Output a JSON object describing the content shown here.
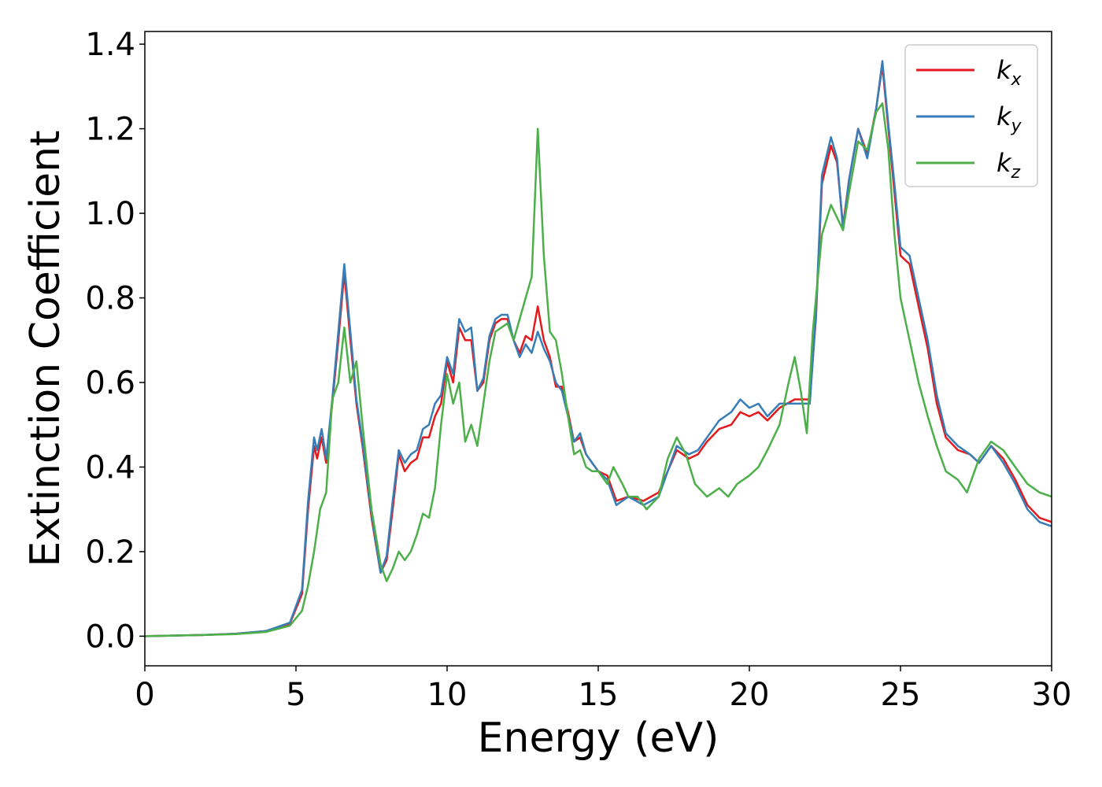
{
  "chart_data": {
    "type": "line",
    "xlabel": "Energy (eV)",
    "ylabel": "Extinction Coefficient",
    "xlim": [
      0,
      30
    ],
    "ylim": [
      -0.07,
      1.43
    ],
    "xticks": [
      0,
      5,
      10,
      15,
      20,
      25,
      30
    ],
    "xtick_labels": [
      "0",
      "5",
      "10",
      "15",
      "20",
      "25",
      "30"
    ],
    "yticks": [
      0.0,
      0.2,
      0.4,
      0.6,
      0.8,
      1.0,
      1.2,
      1.4
    ],
    "ytick_labels": [
      "0.0",
      "0.2",
      "0.4",
      "0.6",
      "0.8",
      "1.0",
      "1.2",
      "1.4"
    ],
    "grid": false,
    "legend_position": "top-right",
    "series": [
      {
        "name": "k_x",
        "label_main": "k",
        "label_sub": "x",
        "color": "#e41a1c",
        "points": [
          [
            0,
            0
          ],
          [
            2,
            0.003
          ],
          [
            3,
            0.006
          ],
          [
            4,
            0.012
          ],
          [
            4.8,
            0.03
          ],
          [
            5.2,
            0.1
          ],
          [
            5.4,
            0.3
          ],
          [
            5.6,
            0.45
          ],
          [
            5.7,
            0.42
          ],
          [
            5.85,
            0.47
          ],
          [
            6.0,
            0.41
          ],
          [
            6.2,
            0.55
          ],
          [
            6.4,
            0.7
          ],
          [
            6.6,
            0.86
          ],
          [
            6.8,
            0.7
          ],
          [
            7.0,
            0.55
          ],
          [
            7.2,
            0.45
          ],
          [
            7.5,
            0.28
          ],
          [
            7.8,
            0.15
          ],
          [
            8.0,
            0.18
          ],
          [
            8.2,
            0.3
          ],
          [
            8.4,
            0.43
          ],
          [
            8.6,
            0.39
          ],
          [
            8.8,
            0.41
          ],
          [
            9.0,
            0.42
          ],
          [
            9.2,
            0.47
          ],
          [
            9.4,
            0.47
          ],
          [
            9.6,
            0.52
          ],
          [
            9.8,
            0.55
          ],
          [
            10.0,
            0.65
          ],
          [
            10.2,
            0.6
          ],
          [
            10.4,
            0.73
          ],
          [
            10.6,
            0.7
          ],
          [
            10.8,
            0.7
          ],
          [
            11.0,
            0.58
          ],
          [
            11.2,
            0.6
          ],
          [
            11.4,
            0.7
          ],
          [
            11.6,
            0.74
          ],
          [
            11.8,
            0.75
          ],
          [
            12.0,
            0.75
          ],
          [
            12.2,
            0.7
          ],
          [
            12.4,
            0.67
          ],
          [
            12.6,
            0.71
          ],
          [
            12.8,
            0.7
          ],
          [
            13.0,
            0.78
          ],
          [
            13.2,
            0.7
          ],
          [
            13.4,
            0.66
          ],
          [
            13.6,
            0.59
          ],
          [
            13.8,
            0.59
          ],
          [
            14.0,
            0.53
          ],
          [
            14.2,
            0.46
          ],
          [
            14.4,
            0.47
          ],
          [
            14.6,
            0.43
          ],
          [
            14.8,
            0.41
          ],
          [
            15.0,
            0.39
          ],
          [
            15.3,
            0.38
          ],
          [
            15.6,
            0.32
          ],
          [
            16.0,
            0.33
          ],
          [
            16.5,
            0.32
          ],
          [
            17.0,
            0.34
          ],
          [
            17.3,
            0.39
          ],
          [
            17.6,
            0.44
          ],
          [
            18.0,
            0.42
          ],
          [
            18.3,
            0.43
          ],
          [
            18.6,
            0.46
          ],
          [
            19.0,
            0.49
          ],
          [
            19.4,
            0.5
          ],
          [
            19.7,
            0.53
          ],
          [
            20.0,
            0.52
          ],
          [
            20.3,
            0.53
          ],
          [
            20.6,
            0.51
          ],
          [
            21.0,
            0.54
          ],
          [
            21.5,
            0.56
          ],
          [
            22.0,
            0.56
          ],
          [
            22.2,
            0.75
          ],
          [
            22.4,
            1.07
          ],
          [
            22.7,
            1.16
          ],
          [
            22.9,
            1.12
          ],
          [
            23.1,
            0.97
          ],
          [
            23.3,
            1.08
          ],
          [
            23.6,
            1.2
          ],
          [
            23.9,
            1.14
          ],
          [
            24.2,
            1.25
          ],
          [
            24.4,
            1.35
          ],
          [
            24.6,
            1.2
          ],
          [
            24.8,
            1.05
          ],
          [
            25.0,
            0.9
          ],
          [
            25.3,
            0.88
          ],
          [
            25.6,
            0.78
          ],
          [
            25.9,
            0.68
          ],
          [
            26.2,
            0.55
          ],
          [
            26.5,
            0.47
          ],
          [
            26.9,
            0.44
          ],
          [
            27.3,
            0.43
          ],
          [
            27.6,
            0.41
          ],
          [
            28.0,
            0.45
          ],
          [
            28.4,
            0.42
          ],
          [
            28.8,
            0.37
          ],
          [
            29.2,
            0.31
          ],
          [
            29.6,
            0.28
          ],
          [
            30.0,
            0.27
          ]
        ]
      },
      {
        "name": "k_y",
        "label_main": "k",
        "label_sub": "y",
        "color": "#377eb8",
        "points": [
          [
            0,
            0
          ],
          [
            2,
            0.003
          ],
          [
            3,
            0.006
          ],
          [
            4,
            0.012
          ],
          [
            4.8,
            0.032
          ],
          [
            5.2,
            0.11
          ],
          [
            5.4,
            0.32
          ],
          [
            5.6,
            0.47
          ],
          [
            5.7,
            0.44
          ],
          [
            5.85,
            0.49
          ],
          [
            6.0,
            0.42
          ],
          [
            6.2,
            0.56
          ],
          [
            6.4,
            0.72
          ],
          [
            6.6,
            0.88
          ],
          [
            6.8,
            0.72
          ],
          [
            7.0,
            0.56
          ],
          [
            7.2,
            0.46
          ],
          [
            7.5,
            0.29
          ],
          [
            7.8,
            0.15
          ],
          [
            8.0,
            0.19
          ],
          [
            8.2,
            0.32
          ],
          [
            8.4,
            0.44
          ],
          [
            8.6,
            0.41
          ],
          [
            8.8,
            0.43
          ],
          [
            9.0,
            0.44
          ],
          [
            9.2,
            0.49
          ],
          [
            9.4,
            0.5
          ],
          [
            9.6,
            0.55
          ],
          [
            9.8,
            0.57
          ],
          [
            10.0,
            0.66
          ],
          [
            10.2,
            0.62
          ],
          [
            10.4,
            0.75
          ],
          [
            10.6,
            0.72
          ],
          [
            10.8,
            0.73
          ],
          [
            11.0,
            0.58
          ],
          [
            11.2,
            0.61
          ],
          [
            11.4,
            0.71
          ],
          [
            11.6,
            0.75
          ],
          [
            11.8,
            0.76
          ],
          [
            12.0,
            0.76
          ],
          [
            12.2,
            0.7
          ],
          [
            12.4,
            0.66
          ],
          [
            12.6,
            0.69
          ],
          [
            12.8,
            0.67
          ],
          [
            13.0,
            0.72
          ],
          [
            13.2,
            0.68
          ],
          [
            13.4,
            0.65
          ],
          [
            13.6,
            0.6
          ],
          [
            13.8,
            0.58
          ],
          [
            14.0,
            0.52
          ],
          [
            14.2,
            0.46
          ],
          [
            14.4,
            0.48
          ],
          [
            14.6,
            0.43
          ],
          [
            14.8,
            0.41
          ],
          [
            15.0,
            0.39
          ],
          [
            15.3,
            0.37
          ],
          [
            15.6,
            0.31
          ],
          [
            16.0,
            0.33
          ],
          [
            16.5,
            0.31
          ],
          [
            17.0,
            0.33
          ],
          [
            17.3,
            0.39
          ],
          [
            17.6,
            0.45
          ],
          [
            18.0,
            0.43
          ],
          [
            18.3,
            0.44
          ],
          [
            18.6,
            0.47
          ],
          [
            19.0,
            0.51
          ],
          [
            19.4,
            0.53
          ],
          [
            19.7,
            0.56
          ],
          [
            20.0,
            0.54
          ],
          [
            20.3,
            0.55
          ],
          [
            20.6,
            0.52
          ],
          [
            21.0,
            0.55
          ],
          [
            21.5,
            0.55
          ],
          [
            22.0,
            0.55
          ],
          [
            22.2,
            0.76
          ],
          [
            22.4,
            1.09
          ],
          [
            22.7,
            1.18
          ],
          [
            22.9,
            1.13
          ],
          [
            23.1,
            0.96
          ],
          [
            23.3,
            1.08
          ],
          [
            23.6,
            1.2
          ],
          [
            23.9,
            1.13
          ],
          [
            24.2,
            1.25
          ],
          [
            24.4,
            1.36
          ],
          [
            24.6,
            1.21
          ],
          [
            24.8,
            1.07
          ],
          [
            25.0,
            0.92
          ],
          [
            25.3,
            0.9
          ],
          [
            25.6,
            0.8
          ],
          [
            25.9,
            0.7
          ],
          [
            26.2,
            0.57
          ],
          [
            26.5,
            0.48
          ],
          [
            26.9,
            0.45
          ],
          [
            27.3,
            0.43
          ],
          [
            27.6,
            0.41
          ],
          [
            28.0,
            0.45
          ],
          [
            28.4,
            0.41
          ],
          [
            28.8,
            0.36
          ],
          [
            29.2,
            0.3
          ],
          [
            29.6,
            0.27
          ],
          [
            30.0,
            0.26
          ]
        ]
      },
      {
        "name": "k_z",
        "label_main": "k",
        "label_sub": "z",
        "color": "#4daf4a",
        "points": [
          [
            0,
            0
          ],
          [
            2,
            0.003
          ],
          [
            3,
            0.005
          ],
          [
            4,
            0.01
          ],
          [
            4.8,
            0.025
          ],
          [
            5.2,
            0.06
          ],
          [
            5.4,
            0.12
          ],
          [
            5.6,
            0.2
          ],
          [
            5.8,
            0.3
          ],
          [
            6.0,
            0.34
          ],
          [
            6.2,
            0.56
          ],
          [
            6.4,
            0.6
          ],
          [
            6.6,
            0.73
          ],
          [
            6.8,
            0.6
          ],
          [
            7.0,
            0.65
          ],
          [
            7.2,
            0.5
          ],
          [
            7.5,
            0.3
          ],
          [
            7.8,
            0.17
          ],
          [
            8.0,
            0.13
          ],
          [
            8.2,
            0.16
          ],
          [
            8.4,
            0.2
          ],
          [
            8.6,
            0.18
          ],
          [
            8.8,
            0.2
          ],
          [
            9.0,
            0.24
          ],
          [
            9.2,
            0.29
          ],
          [
            9.4,
            0.28
          ],
          [
            9.6,
            0.35
          ],
          [
            9.8,
            0.5
          ],
          [
            10.0,
            0.62
          ],
          [
            10.2,
            0.55
          ],
          [
            10.4,
            0.6
          ],
          [
            10.6,
            0.46
          ],
          [
            10.8,
            0.5
          ],
          [
            11.0,
            0.45
          ],
          [
            11.2,
            0.55
          ],
          [
            11.4,
            0.65
          ],
          [
            11.6,
            0.72
          ],
          [
            11.8,
            0.73
          ],
          [
            12.0,
            0.74
          ],
          [
            12.2,
            0.7
          ],
          [
            12.4,
            0.75
          ],
          [
            12.6,
            0.8
          ],
          [
            12.8,
            0.85
          ],
          [
            13.0,
            1.2
          ],
          [
            13.2,
            0.9
          ],
          [
            13.4,
            0.72
          ],
          [
            13.6,
            0.7
          ],
          [
            13.8,
            0.62
          ],
          [
            14.0,
            0.52
          ],
          [
            14.2,
            0.43
          ],
          [
            14.4,
            0.44
          ],
          [
            14.6,
            0.4
          ],
          [
            14.8,
            0.39
          ],
          [
            15.0,
            0.39
          ],
          [
            15.3,
            0.36
          ],
          [
            15.5,
            0.4
          ],
          [
            15.8,
            0.36
          ],
          [
            16.0,
            0.33
          ],
          [
            16.3,
            0.33
          ],
          [
            16.6,
            0.3
          ],
          [
            17.0,
            0.33
          ],
          [
            17.3,
            0.42
          ],
          [
            17.6,
            0.47
          ],
          [
            17.9,
            0.43
          ],
          [
            18.2,
            0.36
          ],
          [
            18.6,
            0.33
          ],
          [
            19.0,
            0.35
          ],
          [
            19.3,
            0.33
          ],
          [
            19.6,
            0.36
          ],
          [
            20.0,
            0.38
          ],
          [
            20.3,
            0.4
          ],
          [
            20.6,
            0.44
          ],
          [
            21.0,
            0.5
          ],
          [
            21.3,
            0.6
          ],
          [
            21.5,
            0.66
          ],
          [
            21.7,
            0.58
          ],
          [
            21.9,
            0.48
          ],
          [
            22.1,
            0.72
          ],
          [
            22.4,
            0.95
          ],
          [
            22.7,
            1.02
          ],
          [
            22.9,
            0.99
          ],
          [
            23.1,
            0.96
          ],
          [
            23.3,
            1.05
          ],
          [
            23.6,
            1.17
          ],
          [
            23.9,
            1.15
          ],
          [
            24.2,
            1.24
          ],
          [
            24.4,
            1.26
          ],
          [
            24.6,
            1.15
          ],
          [
            24.8,
            0.95
          ],
          [
            25.0,
            0.8
          ],
          [
            25.3,
            0.7
          ],
          [
            25.6,
            0.6
          ],
          [
            25.9,
            0.52
          ],
          [
            26.2,
            0.45
          ],
          [
            26.5,
            0.39
          ],
          [
            26.9,
            0.37
          ],
          [
            27.2,
            0.34
          ],
          [
            27.6,
            0.42
          ],
          [
            28.0,
            0.46
          ],
          [
            28.4,
            0.44
          ],
          [
            28.8,
            0.4
          ],
          [
            29.2,
            0.36
          ],
          [
            29.6,
            0.34
          ],
          [
            30.0,
            0.33
          ]
        ]
      }
    ]
  }
}
